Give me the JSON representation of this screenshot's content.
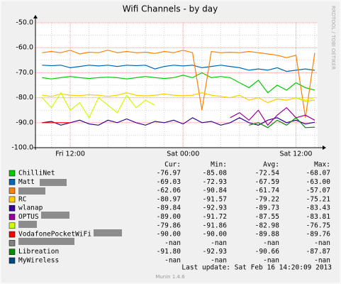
{
  "chart_data": {
    "type": "line",
    "title": "Wifi Channels - by day",
    "watermark": "RRDTOOL / TOBI OETIKER",
    "footer": "Last update:  Sat Feb 16 14:20:09 2013",
    "version": "Munin 1.4.6",
    "legend_columns": [
      "Cur:",
      "Min:",
      "Avg:",
      "Max:"
    ],
    "ylim": [
      -100,
      -50
    ],
    "yticks": [
      {
        "value": -100,
        "label": "-100.0"
      },
      {
        "value": -90,
        "label": "-90.0"
      },
      {
        "value": -80,
        "label": "-80.0"
      },
      {
        "value": -70,
        "label": "-70.0"
      },
      {
        "value": -60,
        "label": "-60.0"
      },
      {
        "value": -50,
        "label": "-50.0"
      }
    ],
    "y_minor_ticks": [
      -95,
      -85,
      -75,
      -65,
      -55
    ],
    "xlim": [
      8.3,
      38.3
    ],
    "xticks": [
      {
        "value": 12,
        "label": "Fri 12:00"
      },
      {
        "value": 24,
        "label": "Sat 00:00"
      },
      {
        "value": 36,
        "label": "Sat 12:00"
      }
    ],
    "x_minor_ticks": [
      10,
      14,
      16,
      18,
      20,
      22,
      26,
      28,
      30,
      32,
      34,
      38
    ],
    "grid": true,
    "x": [
      9,
      10,
      11,
      12,
      13,
      14,
      15,
      16,
      17,
      18,
      19,
      20,
      21,
      22,
      23,
      24,
      25,
      26,
      27,
      28,
      29,
      30,
      31,
      32,
      33,
      34,
      35,
      36,
      37,
      38
    ],
    "series": [
      {
        "name": "ChilliNet",
        "color": "#00cc00",
        "stats": [
          "-76.97",
          "-85.08",
          "-72.54",
          "-68.07"
        ],
        "values": [
          -72,
          -72.5,
          -72,
          -71.5,
          -72,
          -72.3,
          -72,
          -71.8,
          -72,
          -72.5,
          -72,
          -71.5,
          -72,
          -72.3,
          -72,
          -71,
          -72,
          -70,
          -72,
          -71.5,
          -72,
          -74,
          -76,
          -73,
          -78,
          -75,
          -77,
          -74,
          -76,
          -76.97
        ]
      },
      {
        "name": "Matt",
        "color": "#0066b3",
        "stats": [
          "-69.03",
          "-72.93",
          "-67.59",
          "-63.00"
        ],
        "values": [
          -67,
          -67.2,
          -67,
          -68,
          -67.5,
          -67,
          -67.3,
          -67,
          -67.5,
          -67,
          -67.2,
          -67,
          -68.5,
          -67.5,
          -67,
          -67.3,
          -67,
          -68,
          -67.5,
          -67,
          -67.5,
          -68,
          -69,
          -68.5,
          -69,
          -68,
          -69.5,
          -69,
          -68.5,
          -69.03
        ]
      },
      {
        "name": null,
        "color": "#ff8000",
        "stats": [
          "-62.06",
          "-90.84",
          "-61.74",
          "-57.07"
        ],
        "values": [
          -62,
          -61.5,
          -62,
          -61,
          -62.5,
          -61.8,
          -62,
          -61,
          -62,
          -61.5,
          -62,
          -61.8,
          -62.3,
          -61.5,
          -62,
          -61,
          -62,
          -85,
          -61.5,
          -62,
          -61.8,
          -62,
          -61.5,
          -62,
          -62.5,
          -63,
          -64,
          -63,
          -88,
          -62.06
        ]
      },
      {
        "name": "RC",
        "color": "#ffcc00",
        "stats": [
          "-80.97",
          "-91.57",
          "-79.22",
          "-75.21"
        ],
        "values": [
          -79,
          -79.5,
          -78.5,
          -79,
          -79.2,
          -78.8,
          -79,
          -79.5,
          -79,
          -78,
          -79,
          -79.3,
          -79,
          -78.5,
          -79,
          -79.2,
          -79,
          -78,
          -79,
          -79.5,
          -80,
          -79,
          -81,
          -80,
          -82,
          -80.5,
          -81,
          -80,
          -81.5,
          -80.97
        ]
      },
      {
        "name": "wlanap",
        "color": "#330099",
        "stats": [
          "-89.84",
          "-92.93",
          "-89.73",
          "-83.43"
        ],
        "values": [
          -90,
          -89.5,
          -91,
          -90,
          -89,
          -90.5,
          -91,
          -89,
          -90,
          -88.5,
          -90,
          -91,
          -89.5,
          -90,
          -89,
          -90.5,
          -88,
          -90,
          -89.5,
          -91,
          -90,
          -88,
          -90,
          -91,
          -89,
          -88,
          -90,
          -89,
          -90.5,
          -89.84
        ]
      },
      {
        "name": "OPTUS",
        "color": "#990099",
        "stats": [
          "-89.00",
          "-91.72",
          "-87.55",
          "-83.81"
        ],
        "values": [
          null,
          null,
          null,
          null,
          null,
          null,
          null,
          null,
          null,
          null,
          null,
          null,
          null,
          null,
          null,
          null,
          null,
          null,
          null,
          null,
          -88,
          -86,
          -89,
          -85,
          -91,
          -87,
          -84,
          -88,
          -87,
          -89
        ]
      },
      {
        "name": null,
        "color": "#ccff00",
        "stats": [
          "-79.86",
          "-91.86",
          "-82.98",
          "-76.75"
        ],
        "values": [
          -80,
          -84,
          -78,
          -85,
          -82,
          -88,
          -80,
          -83,
          -86,
          -79,
          -84,
          -81,
          -83,
          null,
          null,
          null,
          null,
          null,
          null,
          null,
          null,
          null,
          null,
          null,
          null,
          null,
          null,
          -80,
          -81,
          -79.86
        ]
      },
      {
        "name": "VodafonePocketWiFi",
        "color": "#ff0000",
        "stats": [
          "-90.00",
          "-90.00",
          "-89.88",
          "-89.76"
        ],
        "values": [
          -90,
          -90,
          -90,
          -90,
          null,
          null,
          null,
          null,
          null,
          null,
          null,
          null,
          null,
          null,
          null,
          null,
          null,
          null,
          null,
          null,
          null,
          null,
          null,
          null,
          null,
          null,
          null,
          null,
          null,
          null
        ]
      },
      {
        "name": null,
        "color": "#808080",
        "stats": [
          "-nan",
          "-nan",
          "-nan",
          "-nan"
        ],
        "values": [
          null,
          null,
          null,
          null,
          null,
          null,
          null,
          null,
          null,
          null,
          null,
          null,
          null,
          null,
          null,
          null,
          null,
          null,
          null,
          null,
          null,
          null,
          null,
          null,
          null,
          null,
          null,
          null,
          null,
          null
        ]
      },
      {
        "name": "Libreation",
        "color": "#008f00",
        "stats": [
          "-91.80",
          "-92.93",
          "-90.66",
          "-87.87"
        ],
        "values": [
          null,
          null,
          null,
          null,
          null,
          null,
          null,
          null,
          null,
          null,
          null,
          null,
          null,
          null,
          null,
          null,
          null,
          null,
          null,
          null,
          null,
          null,
          -91,
          -90,
          -92,
          -89,
          -91,
          -88,
          -92,
          -91.8
        ]
      },
      {
        "name": "MyWireless",
        "color": "#00487d",
        "stats": [
          "-nan",
          "-nan",
          "-nan",
          "-nan"
        ],
        "values": [
          null,
          null,
          null,
          null,
          null,
          null,
          null,
          null,
          null,
          null,
          null,
          null,
          null,
          null,
          null,
          null,
          null,
          null,
          null,
          null,
          null,
          null,
          null,
          null,
          null,
          null,
          null,
          null,
          null,
          null
        ]
      }
    ]
  }
}
